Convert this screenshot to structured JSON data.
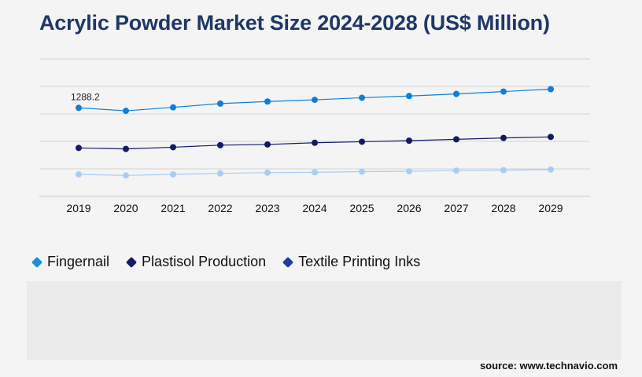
{
  "title": "Acrylic Powder Market Size 2024-2028 (US$ Million)",
  "source": "source: www.technavio.com",
  "chart_data": {
    "type": "line",
    "title": "Acrylic Powder Market Size 2024-2028 (US$ Million)",
    "categories": [
      "2019",
      "2020",
      "2021",
      "2022",
      "2023",
      "2024",
      "2025",
      "2026",
      "2027",
      "2028",
      "2029"
    ],
    "ylim": [
      0,
      2000
    ],
    "grid": true,
    "legend_position": "bottom-left",
    "series": [
      {
        "name": "Fingernail",
        "color": "#0e7fd6",
        "values": [
          1288.2,
          1245,
          1295,
          1350,
          1380,
          1405,
          1435,
          1460,
          1490,
          1525,
          1560
        ]
      },
      {
        "name": "Plastisol Production",
        "color": "#131a66",
        "values": [
          705,
          690,
          715,
          745,
          755,
          780,
          795,
          810,
          830,
          850,
          865
        ]
      },
      {
        "name": "Textile Printing Inks",
        "color": "#a9ccf7",
        "values": [
          320,
          305,
          320,
          335,
          345,
          350,
          360,
          365,
          375,
          380,
          390
        ]
      }
    ],
    "annotations": [
      {
        "series": "Fingernail",
        "category": "2019",
        "text": "1288.2"
      }
    ]
  },
  "legend": [
    {
      "label": "Fingernail",
      "color": "#1a8ee0"
    },
    {
      "label": "Plastisol Production",
      "color": "#131a66"
    },
    {
      "label": "Textile Printing Inks",
      "color": "#1e3f9e"
    }
  ]
}
